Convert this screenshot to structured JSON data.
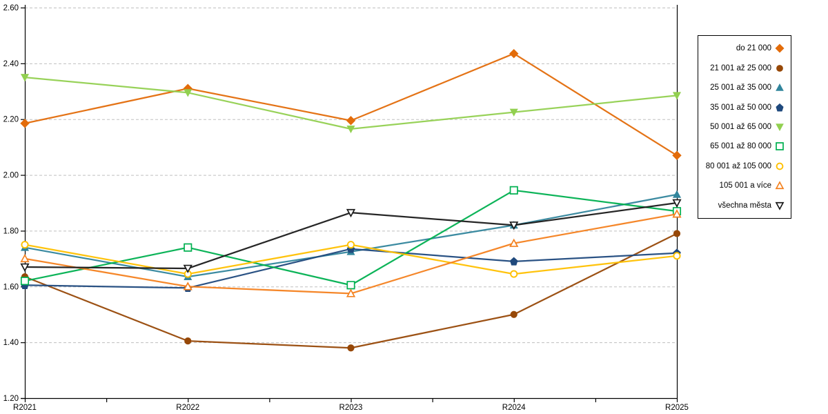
{
  "chart_data": {
    "type": "line",
    "title": "",
    "xlabel": "",
    "ylabel": "",
    "x": [
      "R2021",
      "R2022",
      "R2023",
      "R2024",
      "R2025"
    ],
    "ylim": [
      1.2,
      2.6
    ],
    "yticks": [
      "1.20",
      "1.40",
      "1.60",
      "1.80",
      "2.00",
      "2.20",
      "2.40",
      "2.60"
    ],
    "grid": "horizontal dashed gridlines at every 0.20",
    "legend_position": "right",
    "colors": {
      "gridline": "#BFBFBF",
      "axis": "#000000",
      "background": "#FFFFFF"
    },
    "series": [
      {
        "name": "do 21 000",
        "color": "#E36C0A",
        "marker": "diamond",
        "fill": "filled",
        "values": [
          2.185,
          2.31,
          2.195,
          2.435,
          2.07
        ]
      },
      {
        "name": "21 001 až 25 000",
        "color": "#974807",
        "marker": "circle",
        "fill": "filled",
        "values": [
          1.635,
          1.405,
          1.38,
          1.5,
          1.79
        ]
      },
      {
        "name": "25 001 až 35 000",
        "color": "#31859C",
        "marker": "triangle-up",
        "fill": "filled",
        "values": [
          1.74,
          1.635,
          1.725,
          1.82,
          1.93
        ]
      },
      {
        "name": "35 001 až 50 000",
        "color": "#1F497D",
        "marker": "pentagon",
        "fill": "filled",
        "values": [
          1.605,
          1.595,
          1.735,
          1.69,
          1.72
        ]
      },
      {
        "name": "50 001 až 65 000",
        "color": "#92D050",
        "marker": "triangle-down",
        "fill": "filled",
        "values": [
          2.35,
          2.295,
          2.165,
          2.225,
          2.285
        ]
      },
      {
        "name": "65 001 až 80 000",
        "color": "#00B050",
        "marker": "square",
        "fill": "open",
        "values": [
          1.62,
          1.74,
          1.605,
          1.945,
          1.87
        ]
      },
      {
        "name": "80 001 až 105 000",
        "color": "#FFC000",
        "marker": "circle",
        "fill": "open",
        "values": [
          1.75,
          1.645,
          1.75,
          1.645,
          1.71
        ]
      },
      {
        "name": "105 001 a více",
        "color": "#F4811F",
        "marker": "triangle-up",
        "fill": "open",
        "values": [
          1.7,
          1.6,
          1.575,
          1.755,
          1.86
        ]
      },
      {
        "name": "všechna města",
        "color": "#1A1A1A",
        "marker": "triangle-down",
        "fill": "open",
        "values": [
          1.67,
          1.665,
          1.865,
          1.82,
          1.9
        ]
      }
    ]
  }
}
